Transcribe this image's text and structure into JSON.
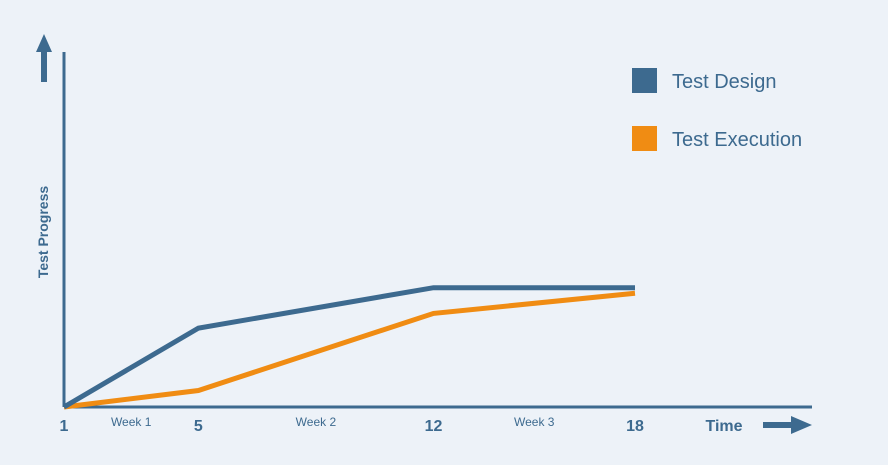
{
  "chart_data": {
    "type": "line",
    "title": "",
    "xlabel": "Time",
    "ylabel": "Test Progress",
    "x_ticks": [
      {
        "value": 1,
        "label": "1"
      },
      {
        "value": 5,
        "label": "5"
      },
      {
        "value": 12,
        "label": "12"
      },
      {
        "value": 18,
        "label": "18"
      }
    ],
    "x_minor_labels": [
      {
        "between": [
          1,
          5
        ],
        "label": "Week 1"
      },
      {
        "between": [
          5,
          12
        ],
        "label": "Week 2"
      },
      {
        "between": [
          12,
          18
        ],
        "label": "Week 3"
      }
    ],
    "xlim": [
      1,
      21
    ],
    "ylim": [
      0,
      100
    ],
    "grid": false,
    "legend": "top-right",
    "series": [
      {
        "name": "Test Design",
        "color": "#3d6a8f",
        "points": [
          {
            "x": 1,
            "y": 0
          },
          {
            "x": 5,
            "y": 21.5
          },
          {
            "x": 12,
            "y": 32.5
          },
          {
            "x": 18,
            "y": 32.5
          }
        ]
      },
      {
        "name": "Test Execution",
        "color": "#f08c13",
        "points": [
          {
            "x": 1,
            "y": 0
          },
          {
            "x": 5,
            "y": 4.5
          },
          {
            "x": 12,
            "y": 25.5
          },
          {
            "x": 18,
            "y": 31
          }
        ]
      }
    ],
    "axis_color": "#3d6a8f"
  }
}
